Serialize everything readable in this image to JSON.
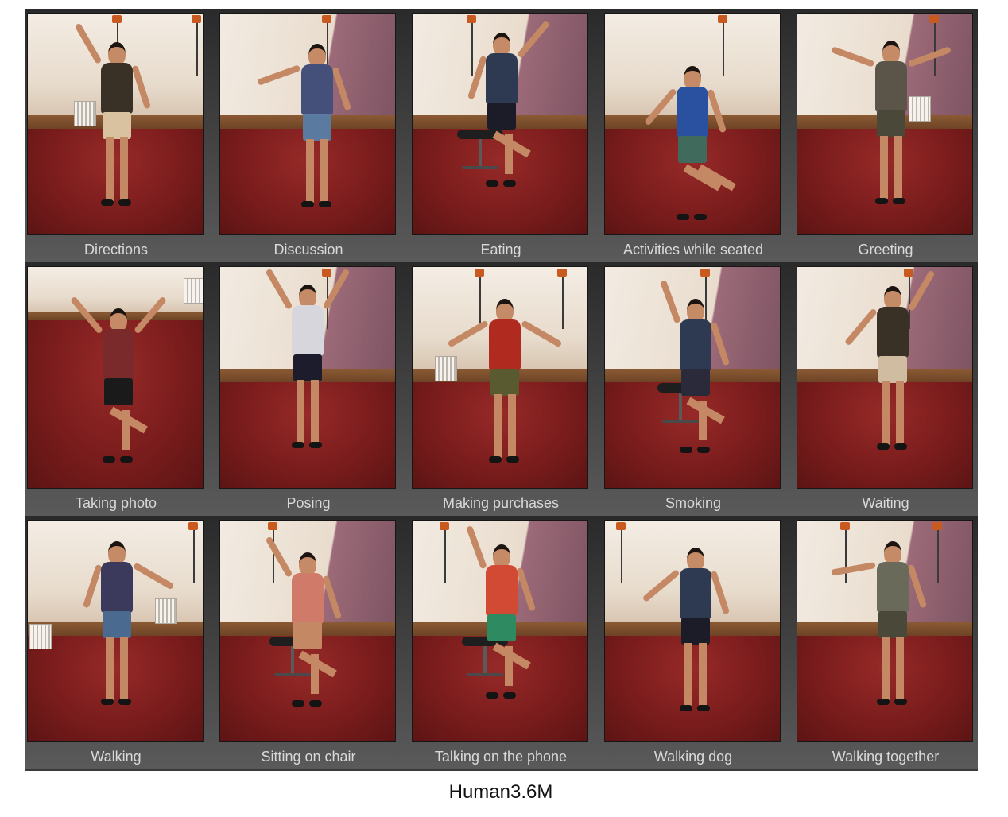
{
  "grid": {
    "rows": [
      [
        {
          "label": "Directions"
        },
        {
          "label": "Discussion"
        },
        {
          "label": "Eating"
        },
        {
          "label": "Activities while seated"
        },
        {
          "label": "Greeting"
        }
      ],
      [
        {
          "label": "Taking photo"
        },
        {
          "label": "Posing"
        },
        {
          "label": "Making purchases"
        },
        {
          "label": "Smoking"
        },
        {
          "label": "Waiting"
        }
      ],
      [
        {
          "label": "Walking"
        },
        {
          "label": "Sitting on chair"
        },
        {
          "label": "Talking on the phone"
        },
        {
          "label": "Walking dog"
        },
        {
          "label": "Walking together"
        }
      ]
    ]
  },
  "caption": "Human3.6M",
  "colors": {
    "panel_background": "#3a3a3a",
    "label_text": "#d9d9d9",
    "carpet": "#7a1c1c",
    "wall": "#efe6dc"
  }
}
